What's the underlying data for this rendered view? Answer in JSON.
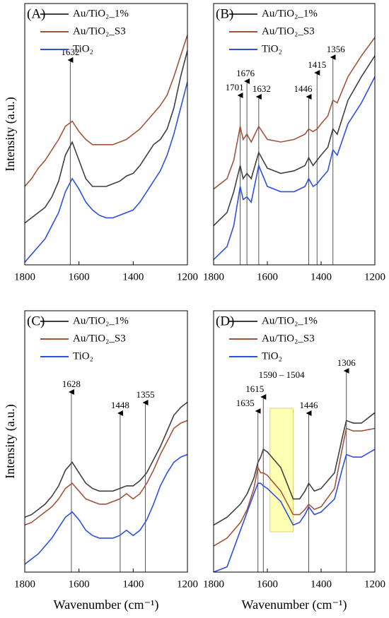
{
  "chart_data": [
    {
      "type": "line",
      "panel_label": "(A)",
      "y_label": "Intensity (a.u.)",
      "x": [
        1800,
        1775,
        1750,
        1725,
        1700,
        1675,
        1650,
        1625,
        1600,
        1575,
        1550,
        1525,
        1500,
        1475,
        1450,
        1425,
        1400,
        1375,
        1350,
        1325,
        1300,
        1275,
        1250,
        1225,
        1200
      ],
      "xlim": [
        1800,
        1200
      ],
      "xticks": [
        1800,
        1600,
        1400,
        1200
      ],
      "ylim": [
        0,
        100
      ],
      "series": [
        {
          "name": "Au/TiO₂_1%",
          "color": "#3f3f3f",
          "values": [
            16,
            18,
            20,
            22,
            26,
            32,
            42,
            47,
            40,
            33,
            30,
            30,
            30,
            31,
            32,
            34,
            35,
            38,
            42,
            46,
            48,
            52,
            60,
            72,
            82
          ]
        },
        {
          "name": "Au/TiO₂_S3",
          "color": "#a0553a",
          "values": [
            30,
            33,
            37,
            40,
            44,
            48,
            53,
            55,
            51,
            48,
            46,
            46,
            46,
            46,
            47,
            48,
            50,
            52,
            55,
            58,
            61,
            65,
            72,
            80,
            88
          ]
        },
        {
          "name": "TiO₂",
          "color": "#2f4fe0",
          "values": [
            1,
            4,
            7,
            10,
            15,
            20,
            28,
            33,
            29,
            24,
            21,
            19,
            18,
            18,
            19,
            20,
            21,
            24,
            28,
            32,
            36,
            42,
            50,
            60,
            70
          ]
        }
      ],
      "peaks": [
        1632
      ]
    },
    {
      "type": "line",
      "panel_label": "(B)",
      "x": [
        1800,
        1750,
        1725,
        1701,
        1690,
        1676,
        1660,
        1632,
        1600,
        1550,
        1500,
        1460,
        1446,
        1430,
        1415,
        1400,
        1375,
        1356,
        1340,
        1300,
        1250,
        1200
      ],
      "xlim": [
        1800,
        1200
      ],
      "xticks": [
        1800,
        1600,
        1400,
        1200
      ],
      "ylim": [
        0,
        100
      ],
      "series": [
        {
          "name": "Au/TiO₂_1%",
          "color": "#3f3f3f",
          "values": [
            15,
            20,
            28,
            38,
            33,
            35,
            33,
            43,
            37,
            35,
            36,
            38,
            41,
            38,
            40,
            42,
            45,
            52,
            50,
            63,
            72,
            80
          ]
        },
        {
          "name": "Au/TiO₂_S3",
          "color": "#a0553a",
          "values": [
            29,
            33,
            40,
            53,
            48,
            50,
            47,
            53,
            48,
            47,
            48,
            50,
            52,
            51,
            52,
            54,
            57,
            63,
            62,
            72,
            80,
            87
          ]
        },
        {
          "name": "TiO₂",
          "color": "#2f4fe0",
          "values": [
            2,
            7,
            15,
            30,
            25,
            26,
            24,
            38,
            30,
            28,
            28,
            30,
            33,
            30,
            31,
            33,
            36,
            44,
            42,
            54,
            62,
            72
          ]
        }
      ],
      "peaks": [
        1701,
        1676,
        1632,
        1446,
        1415,
        1356
      ]
    },
    {
      "type": "line",
      "panel_label": "(C)",
      "y_label": "Intensity (a.u.)",
      "x_label": "Wavenumber (cm⁻¹)",
      "x": [
        1800,
        1775,
        1750,
        1725,
        1700,
        1675,
        1650,
        1625,
        1600,
        1575,
        1550,
        1525,
        1500,
        1475,
        1450,
        1425,
        1400,
        1375,
        1350,
        1325,
        1300,
        1275,
        1250,
        1225,
        1200
      ],
      "xlim": [
        1800,
        1200
      ],
      "xticks": [
        1800,
        1600,
        1400,
        1200
      ],
      "ylim": [
        0,
        100
      ],
      "series": [
        {
          "name": "Au/TiO₂_1%",
          "color": "#3f3f3f",
          "values": [
            21,
            22,
            24,
            26,
            29,
            33,
            39,
            42,
            38,
            34,
            32,
            31,
            31,
            31,
            32,
            33,
            33,
            35,
            38,
            43,
            48,
            54,
            60,
            63,
            65
          ]
        },
        {
          "name": "Au/TiO₂_S3",
          "color": "#a0553a",
          "values": [
            18,
            19,
            21,
            23,
            25,
            28,
            32,
            34,
            31,
            28,
            27,
            26,
            26,
            27,
            28,
            30,
            28,
            30,
            34,
            39,
            45,
            50,
            55,
            57,
            58
          ]
        },
        {
          "name": "TiO₂",
          "color": "#2f4fe0",
          "values": [
            3,
            5,
            7,
            10,
            13,
            17,
            21,
            23,
            20,
            16,
            14,
            13,
            13,
            13,
            14,
            16,
            14,
            16,
            20,
            26,
            33,
            38,
            42,
            44,
            45
          ]
        }
      ],
      "peaks": [
        1628,
        1448,
        1355
      ]
    },
    {
      "type": "line",
      "panel_label": "(D)",
      "x_label": "Wavenumber (cm⁻¹)",
      "x": [
        1800,
        1750,
        1700,
        1675,
        1650,
        1635,
        1625,
        1615,
        1600,
        1550,
        1504,
        1480,
        1460,
        1446,
        1425,
        1400,
        1350,
        1320,
        1306,
        1280,
        1250,
        1200
      ],
      "xlim": [
        1800,
        1200
      ],
      "xticks": [
        1800,
        1600,
        1400,
        1200
      ],
      "ylim": [
        0,
        100
      ],
      "series": [
        {
          "name": "Au/TiO₂_1%",
          "color": "#3f3f3f",
          "values": [
            18,
            21,
            26,
            30,
            36,
            42,
            44,
            47,
            46,
            40,
            28,
            28,
            31,
            34,
            31,
            32,
            38,
            52,
            58,
            57,
            57,
            61
          ]
        },
        {
          "name": "Au/TiO₂_S3",
          "color": "#a0553a",
          "values": [
            10,
            13,
            19,
            24,
            32,
            40,
            38,
            38,
            37,
            31,
            22,
            22,
            24,
            26,
            24,
            25,
            32,
            48,
            55,
            54,
            54,
            55
          ]
        },
        {
          "name": "TiO₂",
          "color": "#2f4fe0",
          "values": [
            0,
            2,
            16,
            23,
            30,
            34,
            34,
            33,
            32,
            27,
            18,
            19,
            22,
            25,
            22,
            23,
            28,
            40,
            45,
            44,
            44,
            47
          ]
        }
      ],
      "peaks": [
        1635,
        1615,
        1446,
        1306
      ],
      "band": [
        1590,
        1504
      ],
      "band_label": "1590 – 1504"
    }
  ]
}
